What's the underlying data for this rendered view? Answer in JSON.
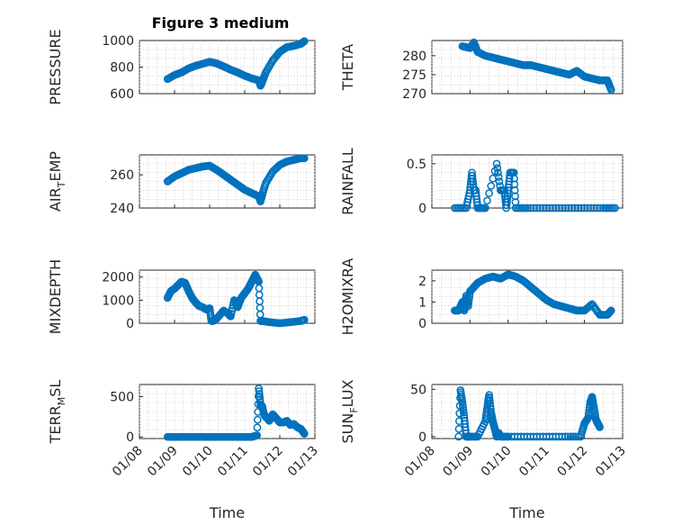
{
  "figure": {
    "title": "Figure 3 medium",
    "marker_color": "#0072BD",
    "xlabel": "Time",
    "x_tick_labels": [
      "01/08",
      "01/09",
      "01/10",
      "01/11",
      "01/12",
      "01/13"
    ]
  },
  "chart_data": [
    {
      "type": "scatter",
      "title": "Figure 3 medium",
      "ylabel": "PRESSURE",
      "xlabel": "",
      "x_ticks": [
        "01/08",
        "01/09",
        "01/10",
        "01/11",
        "01/12",
        "01/13"
      ],
      "xlim": [
        0,
        5
      ],
      "ylim": [
        600,
        1000
      ],
      "yticks": [
        600,
        800,
        1000
      ],
      "grid": true,
      "series": [
        {
          "x": [
            0.8,
            1.0,
            1.2,
            1.4,
            1.6,
            1.8,
            2.0,
            2.2,
            2.4,
            2.6,
            2.8,
            3.0,
            3.2,
            3.4,
            3.45,
            3.5,
            3.6,
            3.8,
            4.0,
            4.2,
            4.4,
            4.6,
            4.7
          ],
          "y": [
            710,
            740,
            760,
            790,
            810,
            825,
            840,
            828,
            805,
            780,
            760,
            735,
            715,
            700,
            660,
            690,
            760,
            850,
            915,
            950,
            960,
            975,
            995
          ]
        }
      ]
    },
    {
      "type": "scatter",
      "ylabel": "THETA",
      "xlabel": "",
      "x_ticks": [
        "01/08",
        "01/09",
        "01/10",
        "01/11",
        "01/12",
        "01/13"
      ],
      "xlim": [
        0,
        5
      ],
      "ylim": [
        270,
        284
      ],
      "yticks": [
        270,
        275,
        280
      ],
      "grid": true,
      "series": [
        {
          "x": [
            0.8,
            1.0,
            1.1,
            1.2,
            1.4,
            1.6,
            1.8,
            2.0,
            2.2,
            2.4,
            2.6,
            2.8,
            3.0,
            3.2,
            3.4,
            3.6,
            3.8,
            4.0,
            4.2,
            4.4,
            4.6,
            4.7
          ],
          "y": [
            282.5,
            282,
            283.5,
            281,
            280,
            279.5,
            279,
            278.5,
            278,
            277.5,
            277.5,
            277,
            276.5,
            276,
            275.5,
            275,
            276,
            274.5,
            274,
            273.5,
            273.5,
            271
          ]
        }
      ]
    },
    {
      "type": "scatter",
      "ylabel": "AIR_TEMP",
      "xlabel": "",
      "x_ticks": [
        "01/08",
        "01/09",
        "01/10",
        "01/11",
        "01/12",
        "01/13"
      ],
      "xlim": [
        0,
        5
      ],
      "ylim": [
        240,
        272
      ],
      "yticks": [
        240,
        260
      ],
      "grid": true,
      "series": [
        {
          "x": [
            0.8,
            1.0,
            1.2,
            1.4,
            1.6,
            1.8,
            2.0,
            2.2,
            2.4,
            2.6,
            2.8,
            3.0,
            3.2,
            3.4,
            3.45,
            3.5,
            3.6,
            3.8,
            4.0,
            4.2,
            4.4,
            4.6,
            4.7
          ],
          "y": [
            256,
            259,
            261,
            263,
            264,
            265,
            265.5,
            263,
            260,
            257,
            254,
            251,
            249,
            247,
            244,
            248,
            255,
            262,
            266,
            268,
            269,
            270,
            270
          ]
        }
      ]
    },
    {
      "type": "scatter",
      "ylabel": "RAINFALL",
      "xlabel": "",
      "x_ticks": [
        "01/08",
        "01/09",
        "01/10",
        "01/11",
        "01/12",
        "01/13"
      ],
      "xlim": [
        0,
        5
      ],
      "ylim": [
        0,
        0.6
      ],
      "yticks": [
        0,
        0.5
      ],
      "grid": true,
      "series": [
        {
          "x": [
            0.6,
            0.9,
            1.0,
            1.05,
            1.1,
            1.15,
            1.2,
            1.4,
            1.7,
            1.8,
            1.85,
            1.9,
            1.95,
            2.0,
            2.05,
            2.1,
            2.15,
            2.2,
            2.5,
            3.0,
            3.5,
            4.0,
            4.5,
            4.8
          ],
          "y": [
            0,
            0,
            0.2,
            0.4,
            0.2,
            0.2,
            0,
            0,
            0.5,
            0.2,
            0.2,
            0.2,
            0,
            0.2,
            0.4,
            0.4,
            0.4,
            0,
            0,
            0,
            0,
            0,
            0,
            0
          ]
        }
      ]
    },
    {
      "type": "scatter",
      "ylabel": "MIXDEPTH",
      "xlabel": "",
      "x_ticks": [
        "01/08",
        "01/09",
        "01/10",
        "01/11",
        "01/12",
        "01/13"
      ],
      "xlim": [
        0,
        5
      ],
      "ylim": [
        0,
        2300
      ],
      "yticks": [
        0,
        1000,
        2000
      ],
      "grid": true,
      "series": [
        {
          "x": [
            0.8,
            0.9,
            1.0,
            1.1,
            1.2,
            1.3,
            1.4,
            1.5,
            1.6,
            1.7,
            1.8,
            1.9,
            2.0,
            2.05,
            2.1,
            2.2,
            2.4,
            2.5,
            2.6,
            2.7,
            2.8,
            2.9,
            3.0,
            3.1,
            3.2,
            3.3,
            3.4,
            3.45,
            3.5,
            3.7,
            4.0,
            4.3,
            4.6,
            4.7
          ],
          "y": [
            1100,
            1400,
            1500,
            1650,
            1800,
            1750,
            1400,
            1100,
            900,
            750,
            700,
            600,
            650,
            100,
            100,
            200,
            550,
            450,
            300,
            1000,
            700,
            1100,
            1300,
            1500,
            1800,
            2100,
            1800,
            100,
            100,
            50,
            0,
            50,
            100,
            150
          ]
        }
      ]
    },
    {
      "type": "scatter",
      "ylabel": "H2OMIXRA",
      "xlabel": "",
      "x_ticks": [
        "01/08",
        "01/09",
        "01/10",
        "01/11",
        "01/12",
        "01/13"
      ],
      "xlim": [
        0,
        5
      ],
      "ylim": [
        0,
        2.5
      ],
      "yticks": [
        0,
        1,
        2
      ],
      "grid": true,
      "series": [
        {
          "x": [
            0.6,
            0.7,
            0.8,
            0.85,
            0.9,
            0.95,
            1.0,
            1.1,
            1.2,
            1.4,
            1.6,
            1.8,
            2.0,
            2.2,
            2.4,
            2.6,
            2.8,
            3.0,
            3.2,
            3.4,
            3.6,
            3.8,
            4.0,
            4.2,
            4.4,
            4.6,
            4.7
          ],
          "y": [
            0.6,
            0.6,
            1.0,
            0.6,
            1.3,
            0.8,
            1.5,
            1.7,
            1.9,
            2.1,
            2.2,
            2.1,
            2.3,
            2.2,
            2.0,
            1.7,
            1.4,
            1.1,
            0.9,
            0.8,
            0.7,
            0.6,
            0.6,
            0.9,
            0.4,
            0.4,
            0.6
          ]
        }
      ]
    },
    {
      "type": "scatter",
      "ylabel": "TERR_MSL",
      "xlabel": "Time",
      "x_ticks": [
        "01/08",
        "01/09",
        "01/10",
        "01/11",
        "01/12",
        "01/13"
      ],
      "xlim": [
        0,
        5
      ],
      "ylim": [
        -20,
        650
      ],
      "yticks": [
        0,
        500
      ],
      "grid": true,
      "series": [
        {
          "x": [
            0.8,
            1.0,
            1.2,
            1.5,
            1.8,
            2.0,
            2.2,
            2.5,
            2.8,
            3.0,
            3.2,
            3.35,
            3.4,
            3.45,
            3.5,
            3.55,
            3.6,
            3.7,
            3.8,
            3.9,
            4.0,
            4.1,
            4.2,
            4.3,
            4.4,
            4.5,
            4.6,
            4.7
          ],
          "y": [
            0,
            0,
            0,
            0,
            0,
            0,
            0,
            0,
            0,
            0,
            0,
            20,
            600,
            400,
            380,
            280,
            250,
            200,
            280,
            230,
            180,
            180,
            200,
            150,
            160,
            120,
            100,
            40
          ]
        }
      ]
    },
    {
      "type": "scatter",
      "ylabel": "SUN_FLUX",
      "xlabel": "Time",
      "x_ticks": [
        "01/08",
        "01/09",
        "01/10",
        "01/11",
        "01/12",
        "01/13"
      ],
      "xlim": [
        0,
        5
      ],
      "ylim": [
        -2,
        55
      ],
      "yticks": [
        0,
        50
      ],
      "grid": true,
      "series": [
        {
          "x": [
            0.7,
            0.75,
            0.8,
            0.85,
            0.9,
            1.0,
            1.2,
            1.4,
            1.45,
            1.5,
            1.55,
            1.6,
            1.65,
            1.7,
            1.75,
            1.8,
            2.0,
            2.5,
            3.0,
            3.5,
            3.9,
            4.0,
            4.1,
            4.15,
            4.2,
            4.25,
            4.3,
            4.35,
            4.4
          ],
          "y": [
            0,
            49,
            36,
            20,
            0,
            0,
            0,
            16,
            30,
            44,
            26,
            16,
            8,
            0,
            4,
            0,
            0,
            0,
            0,
            0,
            0,
            14,
            20,
            36,
            42,
            30,
            18,
            14,
            10
          ]
        }
      ]
    }
  ]
}
